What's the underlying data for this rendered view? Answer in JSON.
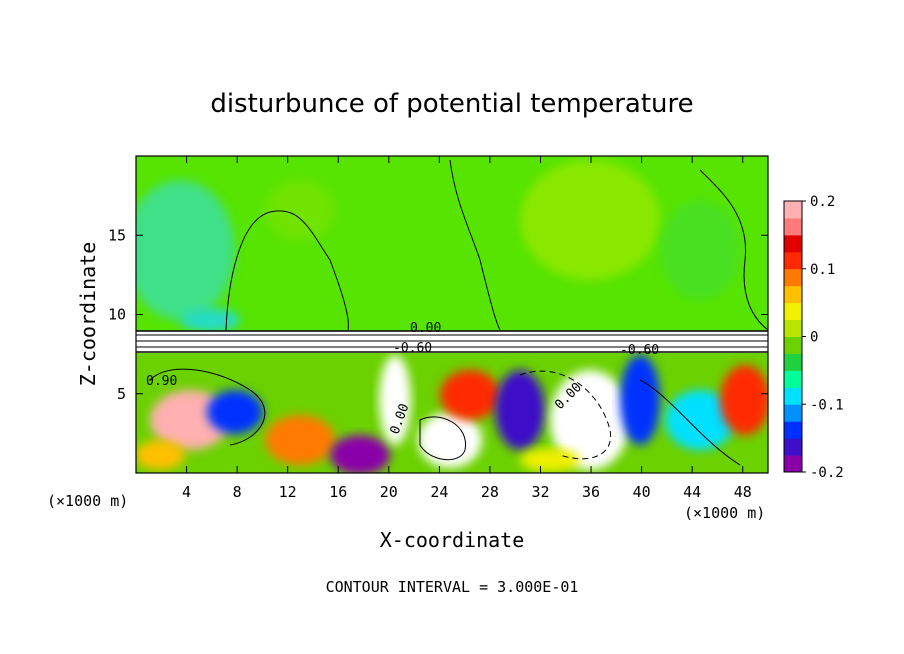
{
  "chart_data": {
    "type": "heatmap",
    "title": "disturbunce of potential temperature",
    "xlabel": "X-coordinate",
    "ylabel": "Z-coordinate",
    "x_unit": "(×1000 m)",
    "x_unit_right": "(×1000 m)",
    "xlim": [
      0,
      50
    ],
    "ylim": [
      0,
      20
    ],
    "x_ticks": [
      4,
      8,
      12,
      16,
      20,
      24,
      28,
      32,
      36,
      40,
      44,
      48
    ],
    "y_ticks": [
      5,
      10,
      15
    ],
    "colorbar": {
      "range": [
        -0.2,
        0.2
      ],
      "tick_values": [
        0.2,
        0.1,
        0,
        -0.1,
        -0.2
      ],
      "tick_labels": [
        "0.2",
        "0.1",
        "0",
        "-0.1",
        "-0.2"
      ],
      "colors": [
        "#8a00a8",
        "#3d10c8",
        "#0030ff",
        "#0090ff",
        "#00e0ff",
        "#00ff9a",
        "#20d040",
        "#6bd100",
        "#b8e600",
        "#f0f000",
        "#ffc000",
        "#ff7a00",
        "#ff2a00",
        "#e00000",
        "#ff7a7a",
        "#ffb0b0"
      ]
    },
    "contour_labels": [
      "0.00",
      "-0.60",
      "0.90",
      "0.00",
      "0.00",
      "-0.60"
    ],
    "footer": "CONTOUR INTERVAL = 3.000E-01"
  }
}
